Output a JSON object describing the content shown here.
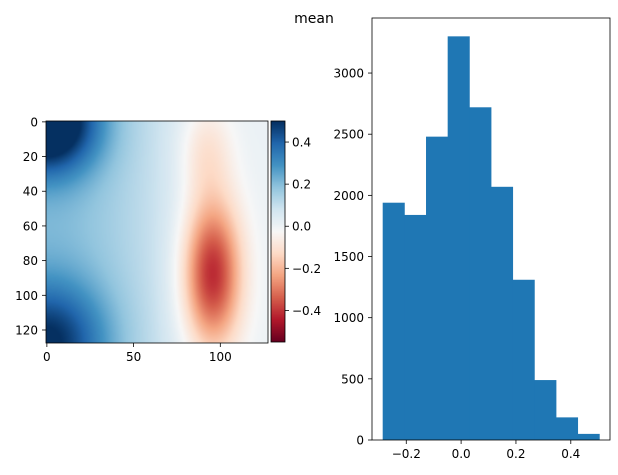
{
  "figure": {
    "suptitle": "mean"
  },
  "chart_data": [
    {
      "type": "heatmap",
      "description_colormap": "RdBu",
      "image_size": [
        128,
        128
      ],
      "xlim": [
        0,
        127
      ],
      "ylim": [
        127,
        0
      ],
      "x_ticks": [
        0,
        50,
        100
      ],
      "x_tick_labels": [
        "0",
        "50",
        "100"
      ],
      "y_ticks": [
        0,
        20,
        40,
        60,
        80,
        100,
        120
      ],
      "y_tick_labels": [
        "0",
        "20",
        "40",
        "60",
        "80",
        "100",
        "120"
      ],
      "value_range": [
        -0.55,
        0.5
      ],
      "colorbar": {
        "ticks": [
          0.4,
          0.2,
          0.0,
          -0.2,
          -0.4
        ],
        "tick_labels": [
          "0.4",
          "0.2",
          "0.0",
          "−0.2",
          "−0.4"
        ]
      },
      "field": {
        "blue_corners": [
          [
            0,
            0
          ],
          [
            0,
            127
          ]
        ],
        "red_center": [
          95,
          88
        ],
        "red_minimum": -0.32
      }
    },
    {
      "type": "bar",
      "kind": "histogram",
      "color": "#1f77b4",
      "bin_edges": [
        -0.286,
        -0.207,
        -0.128,
        -0.049,
        0.03,
        0.109,
        0.188,
        0.267,
        0.346,
        0.425,
        0.504
      ],
      "values": [
        1940,
        1840,
        2480,
        3300,
        2720,
        2070,
        1310,
        490,
        185,
        50
      ],
      "xlim": [
        -0.325,
        0.543
      ],
      "ylim": [
        0,
        3450
      ],
      "x_ticks": [
        -0.2,
        0.0,
        0.2,
        0.4
      ],
      "x_tick_labels": [
        "−0.2",
        "0.0",
        "0.2",
        "0.4"
      ],
      "y_ticks": [
        0,
        500,
        1000,
        1500,
        2000,
        2500,
        3000
      ],
      "y_tick_labels": [
        "0",
        "500",
        "1000",
        "1500",
        "2000",
        "2500",
        "3000"
      ]
    }
  ]
}
